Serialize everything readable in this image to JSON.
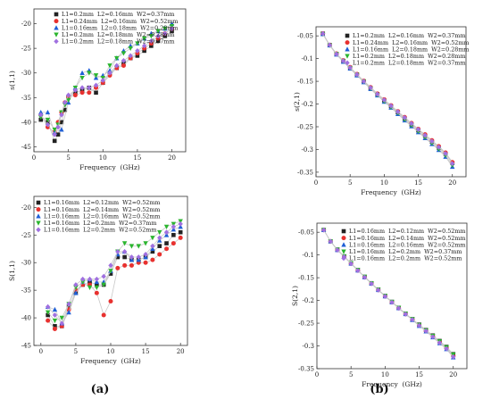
{
  "panel_labels": [
    "(a)",
    "(b)"
  ],
  "colors": {
    "series": [
      "#222222",
      "#e8312f",
      "#1f5fd6",
      "#2bb52f",
      "#a070e0"
    ],
    "line": "#c8c8c8",
    "axis": "#333333"
  },
  "chart_data": [
    {
      "type": "line",
      "xlabel": "Frequency  (GHz)",
      "ylabel": "s(1,1)",
      "xlim": [
        0,
        22
      ],
      "ylim": [
        -46,
        -17
      ],
      "xticks": [
        0,
        5,
        10,
        15,
        20
      ],
      "yticks": [
        -45,
        -40,
        -35,
        -30,
        -25,
        -20
      ],
      "legend": "top-left",
      "series": [
        {
          "name": "L1=0.2mm  L2=0.16mm  W2=0.37mm",
          "x": [
            1,
            2,
            3,
            3.5,
            4,
            4.5,
            5,
            6,
            7,
            8,
            9,
            10,
            11,
            12,
            13,
            14,
            15,
            16,
            17,
            18,
            19,
            20
          ],
          "y": [
            -39.5,
            -40,
            -43.8,
            -42.5,
            -40,
            -37.5,
            -35,
            -34,
            -33.5,
            -33,
            -34,
            -32,
            -30,
            -29,
            -28,
            -27,
            -26.5,
            -25.5,
            -24.5,
            -23.5,
            -22.5,
            -21.5
          ]
        },
        {
          "name": "L1=0.24mm  L2=0.16mm  W2=0.52mm",
          "x": [
            1,
            2,
            3,
            3.5,
            4,
            4.5,
            5,
            6,
            7,
            8,
            9,
            10,
            11,
            12,
            13,
            14,
            15,
            16,
            17,
            18,
            19,
            20
          ],
          "y": [
            -38.5,
            -41,
            -42,
            -40,
            -38,
            -36,
            -35,
            -34.5,
            -34,
            -34,
            -33,
            -32,
            -30.5,
            -29,
            -28.5,
            -27,
            -26,
            -25,
            -24,
            -23,
            -22,
            -21
          ]
        },
        {
          "name": "L1=0.16mm  L2=0.18mm  W2=0.28mm",
          "x": [
            1,
            2,
            3,
            4,
            5,
            6,
            7,
            8,
            9,
            10,
            11,
            12,
            13,
            14,
            15,
            16,
            17,
            18,
            19,
            20
          ],
          "y": [
            -38,
            -38,
            -42,
            -41.5,
            -36,
            -33,
            -30,
            -29.5,
            -31,
            -30.5,
            -29.5,
            -27,
            -25.5,
            -24.5,
            -24,
            -23,
            -22,
            -21.5,
            -21,
            -20
          ]
        },
        {
          "name": "L1=0.2mm  L2=0.18mm  W2=0.28mm",
          "x": [
            1,
            2,
            3,
            3.5,
            4,
            4.5,
            5,
            6,
            7,
            8,
            9,
            10,
            11,
            12,
            13,
            14,
            15,
            16,
            17,
            18,
            19,
            20
          ],
          "y": [
            -39,
            -39.5,
            -41.5,
            -40.5,
            -38,
            -36.5,
            -35.5,
            -33,
            -31,
            -30,
            -30.5,
            -31,
            -28.5,
            -27,
            -26,
            -25,
            -24,
            -23,
            -22.5,
            -21.5,
            -21,
            -20.5
          ]
        },
        {
          "name": "L1=0.2mm  L2=0.18mm  W2=0.37mm",
          "x": [
            1,
            2,
            3,
            3.5,
            4,
            4.5,
            5,
            6,
            7,
            8,
            9,
            10,
            11,
            12,
            13,
            14,
            15,
            16,
            17,
            18,
            19,
            20
          ],
          "y": [
            -38.5,
            -40.5,
            -42.5,
            -41,
            -38.5,
            -36,
            -34.5,
            -33.5,
            -33,
            -33,
            -32.5,
            -31.5,
            -30,
            -28.5,
            -27.5,
            -26.5,
            -25.5,
            -24.5,
            -23.5,
            -22.5,
            -22,
            -21
          ]
        }
      ]
    },
    {
      "type": "line",
      "xlabel": "Frequency  (GHz)",
      "ylabel": "s(2,1)",
      "xlim": [
        0,
        22
      ],
      "ylim": [
        -0.36,
        -0.03
      ],
      "xticks": [
        0,
        5,
        10,
        15,
        20
      ],
      "yticks": [
        -0.05,
        -0.1,
        -0.15,
        -0.2,
        -0.25,
        -0.3,
        -0.35
      ],
      "legend": "top-right",
      "series": [
        {
          "name": "L1=0.2mm  L2=0.16mm  W2=0.37mm",
          "x": [
            1,
            2,
            3,
            4,
            5,
            6,
            7,
            8,
            9,
            10,
            11,
            12,
            13,
            14,
            15,
            16,
            17,
            18,
            19,
            20
          ],
          "y": [
            -0.045,
            -0.07,
            -0.09,
            -0.105,
            -0.12,
            -0.135,
            -0.15,
            -0.165,
            -0.178,
            -0.192,
            -0.205,
            -0.218,
            -0.232,
            -0.245,
            -0.258,
            -0.27,
            -0.283,
            -0.296,
            -0.31,
            -0.33
          ]
        },
        {
          "name": "L1=0.24mm  L2=0.16mm  W2=0.52mm",
          "x": [
            1,
            2,
            3,
            4,
            5,
            6,
            7,
            8,
            9,
            10,
            11,
            12,
            13,
            14,
            15,
            16,
            17,
            18,
            19,
            20
          ],
          "y": [
            -0.045,
            -0.07,
            -0.089,
            -0.104,
            -0.119,
            -0.134,
            -0.149,
            -0.163,
            -0.177,
            -0.19,
            -0.203,
            -0.216,
            -0.229,
            -0.242,
            -0.255,
            -0.267,
            -0.28,
            -0.293,
            -0.307,
            -0.328
          ]
        },
        {
          "name": "L1=0.16mm  L2=0.18mm  W2=0.28mm",
          "x": [
            1,
            2,
            3,
            4,
            5,
            6,
            7,
            8,
            9,
            10,
            11,
            12,
            13,
            14,
            15,
            16,
            17,
            18,
            19,
            20
          ],
          "y": [
            -0.046,
            -0.071,
            -0.091,
            -0.107,
            -0.122,
            -0.137,
            -0.152,
            -0.167,
            -0.181,
            -0.195,
            -0.208,
            -0.222,
            -0.236,
            -0.249,
            -0.262,
            -0.275,
            -0.288,
            -0.301,
            -0.316,
            -0.338
          ]
        },
        {
          "name": "L1=0.2mm  L2=0.18mm  W2=0.28mm",
          "x": [
            1,
            2,
            3,
            4,
            5,
            6,
            7,
            8,
            9,
            10,
            11,
            12,
            13,
            14,
            15,
            16,
            17,
            18,
            19,
            20
          ],
          "y": [
            -0.046,
            -0.071,
            -0.09,
            -0.106,
            -0.121,
            -0.136,
            -0.151,
            -0.166,
            -0.18,
            -0.194,
            -0.207,
            -0.22,
            -0.234,
            -0.247,
            -0.26,
            -0.273,
            -0.286,
            -0.299,
            -0.313,
            -0.335
          ]
        },
        {
          "name": "L1=0.2mm  L2=0.18mm  W2=0.37mm",
          "x": [
            1,
            2,
            3,
            4,
            5,
            6,
            7,
            8,
            9,
            10,
            11,
            12,
            13,
            14,
            15,
            16,
            17,
            18,
            19,
            20
          ],
          "y": [
            -0.045,
            -0.07,
            -0.09,
            -0.105,
            -0.12,
            -0.135,
            -0.15,
            -0.164,
            -0.178,
            -0.191,
            -0.204,
            -0.217,
            -0.23,
            -0.243,
            -0.256,
            -0.269,
            -0.282,
            -0.295,
            -0.309,
            -0.331
          ]
        }
      ]
    },
    {
      "type": "line",
      "xlabel": "Frequency  (GHz)",
      "ylabel": "S(1,1)",
      "xlim": [
        -1,
        21
      ],
      "ylim": [
        -45,
        -18
      ],
      "xticks": [
        0,
        5,
        10,
        15,
        20
      ],
      "yticks": [
        -45,
        -40,
        -35,
        -30,
        -25,
        -20
      ],
      "legend": "top-left",
      "series": [
        {
          "name": "L1=0.16mm  L2=0.12mm  W2=0.52mm",
          "x": [
            1,
            2,
            3,
            4,
            5,
            6,
            7,
            8,
            9,
            10,
            11,
            12,
            13,
            14,
            15,
            16,
            17,
            18,
            19,
            20
          ],
          "y": [
            -39.5,
            -41.5,
            -41.5,
            -38,
            -35.5,
            -34,
            -33.5,
            -34,
            -34,
            -32,
            -29,
            -29,
            -29.5,
            -29.5,
            -29,
            -28,
            -27,
            -26.5,
            -25,
            -24.5
          ]
        },
        {
          "name": "L1=0.16mm  L2=0.14mm  W2=0.52mm",
          "x": [
            1,
            2,
            3,
            4,
            5,
            6,
            7,
            8,
            9,
            10,
            11,
            12,
            13,
            14,
            15,
            16,
            17,
            18,
            19,
            20
          ],
          "y": [
            -40.5,
            -42,
            -41.5,
            -38.5,
            -35,
            -34,
            -34,
            -35.5,
            -39.5,
            -37,
            -31,
            -30.5,
            -30.5,
            -30,
            -30,
            -29.5,
            -28.5,
            -27.5,
            -26.5,
            -25.5
          ]
        },
        {
          "name": "L1=0.16mm  L2=0.16mm  W2=0.52mm",
          "x": [
            1,
            2,
            3,
            4,
            5,
            6,
            7,
            8,
            9,
            10,
            11,
            12,
            13,
            14,
            15,
            16,
            17,
            18,
            19,
            20
          ],
          "y": [
            -38,
            -38.5,
            -41,
            -39,
            -35.5,
            -33.5,
            -33,
            -33.5,
            -33.5,
            -31.5,
            -28.5,
            -28,
            -29.5,
            -29.5,
            -29,
            -27.5,
            -26,
            -25,
            -24,
            -23.5
          ]
        },
        {
          "name": "L1=0.16mm  L2=0.2mm  W2=0.37mm",
          "x": [
            1,
            2,
            3,
            4,
            5,
            6,
            7,
            8,
            9,
            10,
            11,
            12,
            13,
            14,
            15,
            16,
            17,
            18,
            19,
            20
          ],
          "y": [
            -39,
            -40.5,
            -40,
            -37.5,
            -34.5,
            -33.5,
            -34.5,
            -34.5,
            -34,
            -31.5,
            -28,
            -26.5,
            -27,
            -27,
            -26.5,
            -25.5,
            -24.5,
            -23.5,
            -23,
            -22.5
          ]
        },
        {
          "name": "L1=0.16mm  L2=0.2mm  W2=0.52mm",
          "x": [
            1,
            2,
            3,
            4,
            5,
            6,
            7,
            8,
            9,
            10,
            11,
            12,
            13,
            14,
            15,
            16,
            17,
            18,
            19,
            20
          ],
          "y": [
            -38,
            -39.5,
            -41,
            -37.5,
            -34,
            -33,
            -33,
            -33,
            -32.5,
            -30.5,
            -28,
            -28,
            -29,
            -29,
            -28.5,
            -27,
            -25.5,
            -24.5,
            -23.5,
            -23
          ]
        }
      ]
    },
    {
      "type": "line",
      "xlabel": "Frequency  (GHz)",
      "ylabel": "S(2,1)",
      "xlim": [
        0,
        22
      ],
      "ylim": [
        -0.35,
        -0.03
      ],
      "xticks": [
        0,
        5,
        10,
        15,
        20
      ],
      "yticks": [
        -0.05,
        -0.1,
        -0.15,
        -0.2,
        -0.25,
        -0.3,
        -0.35
      ],
      "legend": "top-right",
      "series": [
        {
          "name": "L1=0.16mm  L2=0.12mm  W2=0.52mm",
          "x": [
            1,
            2,
            3,
            4,
            5,
            6,
            7,
            8,
            9,
            10,
            11,
            12,
            13,
            14,
            15,
            16,
            17,
            18,
            19,
            20
          ],
          "y": [
            -0.045,
            -0.07,
            -0.088,
            -0.103,
            -0.118,
            -0.133,
            -0.148,
            -0.162,
            -0.176,
            -0.19,
            -0.203,
            -0.216,
            -0.229,
            -0.241,
            -0.253,
            -0.265,
            -0.277,
            -0.289,
            -0.302,
            -0.318
          ]
        },
        {
          "name": "L1=0.16mm  L2=0.14mm  W2=0.52mm",
          "x": [
            1,
            2,
            3,
            4,
            5,
            6,
            7,
            8,
            9,
            10,
            11,
            12,
            13,
            14,
            15,
            16,
            17,
            18,
            19,
            20
          ],
          "y": [
            -0.045,
            -0.07,
            -0.089,
            -0.104,
            -0.119,
            -0.134,
            -0.149,
            -0.163,
            -0.177,
            -0.191,
            -0.204,
            -0.217,
            -0.23,
            -0.242,
            -0.255,
            -0.267,
            -0.279,
            -0.292,
            -0.305,
            -0.322
          ]
        },
        {
          "name": "L1=0.16mm  L2=0.16mm  W2=0.52mm",
          "x": [
            1,
            2,
            3,
            4,
            5,
            6,
            7,
            8,
            9,
            10,
            11,
            12,
            13,
            14,
            15,
            16,
            17,
            18,
            19,
            20
          ],
          "y": [
            -0.045,
            -0.07,
            -0.089,
            -0.104,
            -0.119,
            -0.134,
            -0.149,
            -0.163,
            -0.177,
            -0.191,
            -0.204,
            -0.217,
            -0.23,
            -0.243,
            -0.256,
            -0.268,
            -0.281,
            -0.294,
            -0.307,
            -0.325
          ]
        },
        {
          "name": "L1=0.16mm  L2=0.2mm  W2=0.37mm",
          "x": [
            1,
            2,
            3,
            4,
            5,
            6,
            7,
            8,
            9,
            10,
            11,
            12,
            13,
            14,
            15,
            16,
            17,
            18,
            19,
            20
          ],
          "y": [
            -0.045,
            -0.07,
            -0.088,
            -0.103,
            -0.118,
            -0.133,
            -0.148,
            -0.162,
            -0.176,
            -0.19,
            -0.203,
            -0.216,
            -0.229,
            -0.241,
            -0.254,
            -0.266,
            -0.278,
            -0.29,
            -0.303,
            -0.319
          ]
        },
        {
          "name": "L1=0.16mm  L2=0.2mm  W2=0.52mm",
          "x": [
            1,
            2,
            3,
            4,
            5,
            6,
            7,
            8,
            9,
            10,
            11,
            12,
            13,
            14,
            15,
            16,
            17,
            18,
            19,
            20
          ],
          "y": [
            -0.045,
            -0.07,
            -0.089,
            -0.104,
            -0.119,
            -0.134,
            -0.149,
            -0.163,
            -0.177,
            -0.191,
            -0.204,
            -0.217,
            -0.23,
            -0.242,
            -0.255,
            -0.267,
            -0.28,
            -0.293,
            -0.306,
            -0.324
          ]
        }
      ]
    }
  ]
}
